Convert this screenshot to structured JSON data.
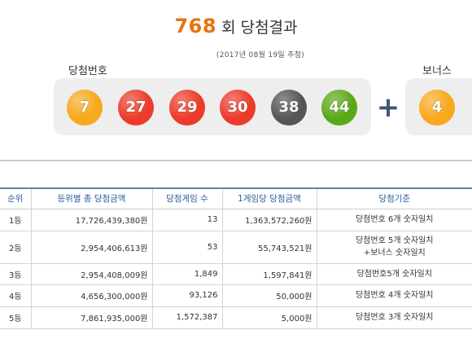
{
  "title": {
    "round": "768",
    "suffix": "회 당첨결과"
  },
  "draw_date": "(2017년 08월 19일 추첨)",
  "winning_label": "당첨번호",
  "bonus_label": "보너스",
  "plus_symbol": "+",
  "winning_numbers": [
    {
      "value": "7",
      "color": "#f7a81c"
    },
    {
      "value": "27",
      "color": "#ec3b2a"
    },
    {
      "value": "29",
      "color": "#ec3b2a"
    },
    {
      "value": "30",
      "color": "#ec3b2a"
    },
    {
      "value": "38",
      "color": "#555555"
    },
    {
      "value": "44",
      "color": "#5aa818"
    }
  ],
  "bonus_number": {
    "value": "4",
    "color": "#f7a81c"
  },
  "table": {
    "headers": [
      "순위",
      "등위별 총 당첨금액",
      "당첨게임 수",
      "1게임당 당첨금액",
      "당첨기준"
    ],
    "rows": [
      {
        "rank": "1등",
        "total": "17,726,439,380원",
        "games": "13",
        "per_game": "1,363,572,260원",
        "criteria": [
          "당첨번호 6개 숫자일치"
        ]
      },
      {
        "rank": "2등",
        "total": "2,954,406,613원",
        "games": "53",
        "per_game": "55,743,521원",
        "criteria": [
          "당첨번호 5개 숫자일치",
          "+보너스 숫자일치"
        ]
      },
      {
        "rank": "3등",
        "total": "2,954,408,009원",
        "games": "1,849",
        "per_game": "1,597,841원",
        "criteria": [
          "당첨번호5개 숫자일치"
        ]
      },
      {
        "rank": "4등",
        "total": "4,656,300,000원",
        "games": "93,126",
        "per_game": "50,000원",
        "criteria": [
          "당첨번호 4개 숫자일치"
        ]
      },
      {
        "rank": "5등",
        "total": "7,861,935,000원",
        "games": "1,572,387",
        "per_game": "5,000원",
        "criteria": [
          "당첨번호 3개 숫자일치"
        ]
      }
    ]
  }
}
